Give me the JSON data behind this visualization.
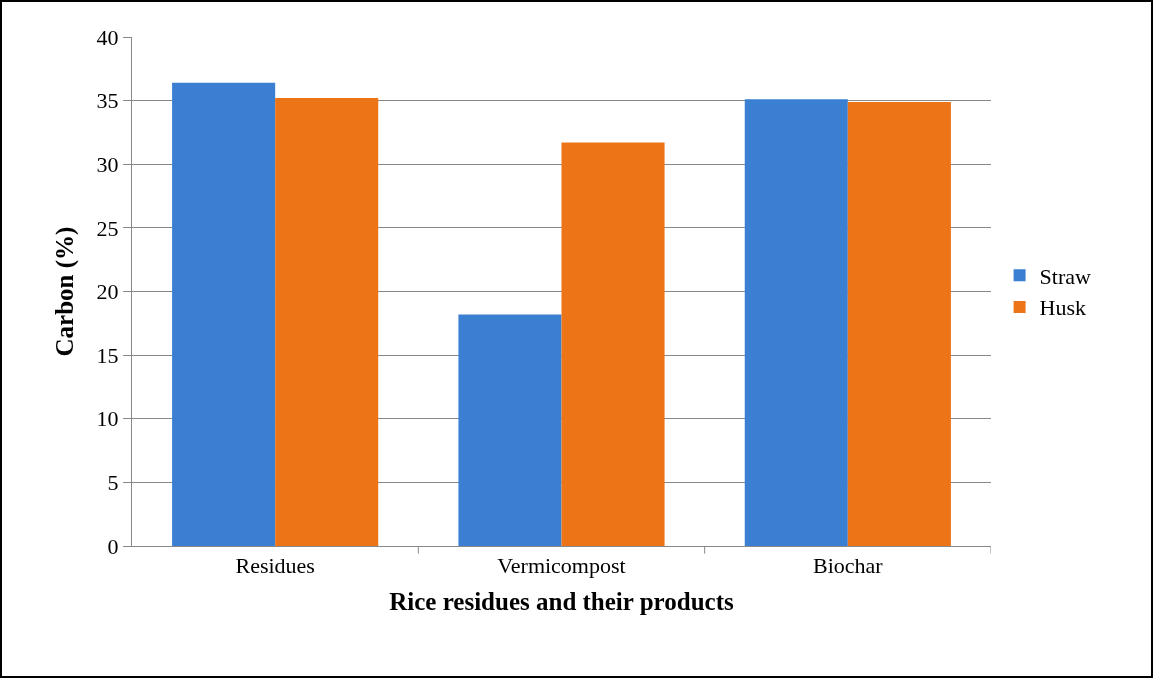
{
  "chart_data": {
    "type": "bar",
    "xlabel": "Rice residues and their products",
    "ylabel": "Carbon (%)",
    "categories": [
      "Residues",
      "Vermicompost",
      "Biochar"
    ],
    "series": [
      {
        "name": "Straw",
        "color": "#3b7fd2",
        "values": [
          36.4,
          18.2,
          35.1
        ]
      },
      {
        "name": "Husk",
        "color": "#ee7418",
        "values": [
          35.2,
          31.7,
          34.9
        ]
      }
    ],
    "ylim": [
      0,
      40
    ],
    "yticks": [
      0,
      5,
      10,
      15,
      20,
      25,
      30,
      35,
      40
    ],
    "grid": "y",
    "legend": "right"
  }
}
